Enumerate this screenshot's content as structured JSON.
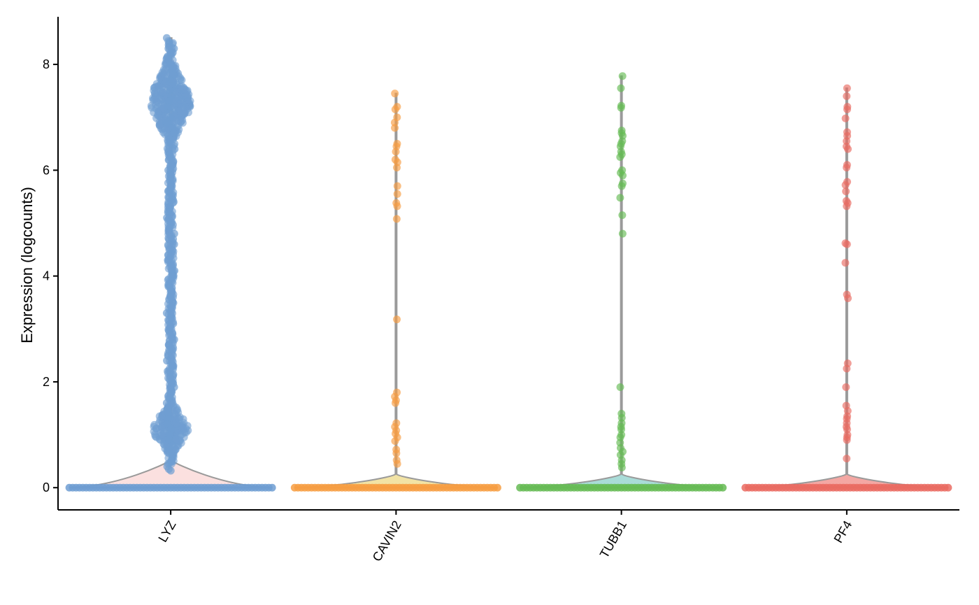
{
  "chart_data": {
    "type": "violin",
    "title": "",
    "xlabel": "",
    "ylabel": "Expression (logcounts)",
    "ylim": [
      -0.42,
      8.9
    ],
    "yticks": [
      0,
      2,
      4,
      6,
      8
    ],
    "grid": false,
    "legend": "none",
    "categories": [
      "LYZ",
      "CAVIN2",
      "TUBB1",
      "PF4"
    ],
    "series": [
      {
        "category": "LYZ",
        "color": "#6f9ed2",
        "violin_fill": "#fbe0df",
        "max": 8.5,
        "zero_fraction": "majority",
        "nonzero_values": [
          8.5,
          8.4,
          8.3,
          8.2,
          8.1,
          8.0,
          7.9,
          7.8,
          7.7,
          7.6,
          7.5,
          7.4,
          7.3,
          7.2,
          7.1,
          7.0,
          6.9,
          6.8,
          6.7,
          6.6,
          6.5,
          6.4,
          6.3,
          6.2,
          6.1,
          6.0,
          5.9,
          5.8,
          5.7,
          5.6,
          5.5,
          5.4,
          5.3,
          5.2,
          5.1,
          5.0,
          4.9,
          4.8,
          4.7,
          4.6,
          4.5,
          4.4,
          4.3,
          4.2,
          4.1,
          4.0,
          3.9,
          3.8,
          3.7,
          3.6,
          3.5,
          3.4,
          3.3,
          3.2,
          3.1,
          3.0,
          2.9,
          2.8,
          2.7,
          2.6,
          2.5,
          2.4,
          2.3,
          2.2,
          2.1,
          2.0,
          1.9,
          1.8,
          1.7,
          1.6,
          1.5,
          1.4,
          1.3,
          1.2,
          1.1,
          1.0,
          0.9,
          0.8,
          0.7,
          0.6,
          0.5,
          0.45,
          0.4,
          0.35,
          0.32
        ]
      },
      {
        "category": "CAVIN2",
        "color": "#f79d42",
        "violin_fill": "#f2e3a5",
        "max": 7.45,
        "nonzero_values": [
          7.45,
          7.2,
          7.15,
          7.0,
          6.9,
          6.8,
          6.5,
          6.45,
          6.35,
          6.2,
          6.15,
          6.05,
          5.7,
          5.55,
          5.38,
          5.32,
          5.08,
          3.18,
          1.8,
          1.72,
          1.65,
          1.6,
          1.22,
          1.15,
          1.08,
          1.02,
          0.95,
          0.88,
          0.72,
          0.65,
          0.52,
          0.45
        ]
      },
      {
        "category": "TUBB1",
        "color": "#66bb55",
        "violin_fill": "#a9dcd8",
        "max": 7.78,
        "nonzero_values": [
          7.78,
          7.55,
          7.22,
          7.18,
          6.75,
          6.7,
          6.65,
          6.55,
          6.5,
          6.45,
          6.35,
          6.3,
          6.25,
          6.0,
          5.95,
          5.9,
          5.75,
          5.7,
          5.48,
          5.15,
          4.8,
          1.9,
          1.4,
          1.32,
          1.22,
          1.15,
          1.1,
          1.0,
          0.95,
          0.85,
          0.75,
          0.68,
          0.62,
          0.52,
          0.45,
          0.38
        ]
      },
      {
        "category": "PF4",
        "color": "#ea6b62",
        "violin_fill": "#f4a7a3",
        "max": 7.55,
        "nonzero_values": [
          7.55,
          7.4,
          7.2,
          7.15,
          6.98,
          6.72,
          6.65,
          6.55,
          6.45,
          6.4,
          6.1,
          6.05,
          5.78,
          5.72,
          5.6,
          5.42,
          5.38,
          5.32,
          4.62,
          4.6,
          4.25,
          3.65,
          3.58,
          2.35,
          2.25,
          1.9,
          1.55,
          1.45,
          1.35,
          1.3,
          1.22,
          1.15,
          1.1,
          1.0,
          0.95,
          0.9,
          0.55
        ]
      }
    ]
  }
}
